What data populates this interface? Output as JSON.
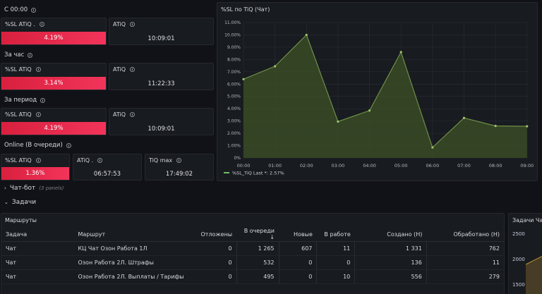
{
  "sections": {
    "since_midnight": "С 00:00",
    "last_hour": "За час",
    "period": "За период",
    "online": "Online (В очереди)"
  },
  "stats": {
    "row1": {
      "sl_label": "%SL ATiQ .",
      "sl_value": "4.19%",
      "atiq_label": "ATiQ",
      "atiq_value": "10:09:01"
    },
    "row2": {
      "sl_label": "%SL ATiQ",
      "sl_value": "3.14%",
      "atiq_label": "ATiQ",
      "atiq_value": "11:22:33"
    },
    "row3": {
      "sl_label": "%SL ATiQ",
      "sl_value": "4.19%",
      "atiq_label": "ATiQ",
      "atiq_value": "10:09:01"
    },
    "row4": {
      "sl_label": "%SL ATiQ",
      "sl_value": "1.36%",
      "atiq_label": "ATiQ .",
      "atiq_value": "06:57:53",
      "tiqmax_label": "TiQ max",
      "tiqmax_value": "17:49:02"
    }
  },
  "chart_data": {
    "type": "area",
    "title": "%SL по TiQ (Чат)",
    "x": [
      "00:00",
      "01:00",
      "02:00",
      "03:00",
      "04:00",
      "05:00",
      "06:00",
      "07:00",
      "08:00",
      "09:00"
    ],
    "x_values": [
      0,
      1,
      2,
      3,
      4,
      5,
      6,
      7,
      8,
      9
    ],
    "series": [
      {
        "name": "%SL_TiQ",
        "points": [
          [
            0,
            6.4
          ],
          [
            1,
            7.45
          ],
          [
            2,
            10.0
          ],
          [
            3,
            2.95
          ],
          [
            4,
            3.85
          ],
          [
            5,
            8.6
          ],
          [
            6,
            0.85
          ],
          [
            7,
            3.25
          ],
          [
            8,
            2.6
          ],
          [
            9,
            2.57
          ]
        ],
        "color": "#5b7a3a"
      }
    ],
    "y_ticks": [
      "0%",
      "1.00%",
      "2.00%",
      "3.00%",
      "4.00%",
      "5.00%",
      "6.00%",
      "7.00%",
      "8.00%",
      "9.00%",
      "10.00%",
      "11.00%"
    ],
    "ylim": [
      0,
      11
    ],
    "xlim": [
      0,
      9.05
    ],
    "legend_text": "%SL_TiQ   Last *: 2.57%",
    "legend_placement": "bottom-left"
  },
  "rows": {
    "chatbot_label": "Чат-бот",
    "chatbot_panels": "(3 panels)",
    "tasks_label": "Задачи"
  },
  "routes_table": {
    "title": "Маршруты",
    "columns": [
      "Задача",
      "Маршрут",
      "Отложены",
      "В очереди ↓",
      "Новые",
      "В работе",
      "Создано (Н)",
      "Обработано (Н)"
    ],
    "rows": [
      [
        "Чат",
        "КЦ Чат Озон Работа 1Л",
        "0",
        "1 265",
        "607",
        "11",
        "1 331",
        "762"
      ],
      [
        "Чат",
        "Озон Работа 2Л. Штрафы",
        "0",
        "532",
        "0",
        "0",
        "136",
        "11"
      ],
      [
        "Чат",
        "Озон Работа 2Л. Выплаты / Тарифы",
        "0",
        "495",
        "0",
        "10",
        "556",
        "279"
      ]
    ]
  },
  "tasks_mini": {
    "title": "Задачи Чат",
    "y_ticks": [
      "2500",
      "2000",
      "1500"
    ]
  },
  "colors": {
    "accent_red": "#e8294c",
    "line_green": "#5b7a3a",
    "bg": "#111217",
    "panel": "#181b1f"
  }
}
